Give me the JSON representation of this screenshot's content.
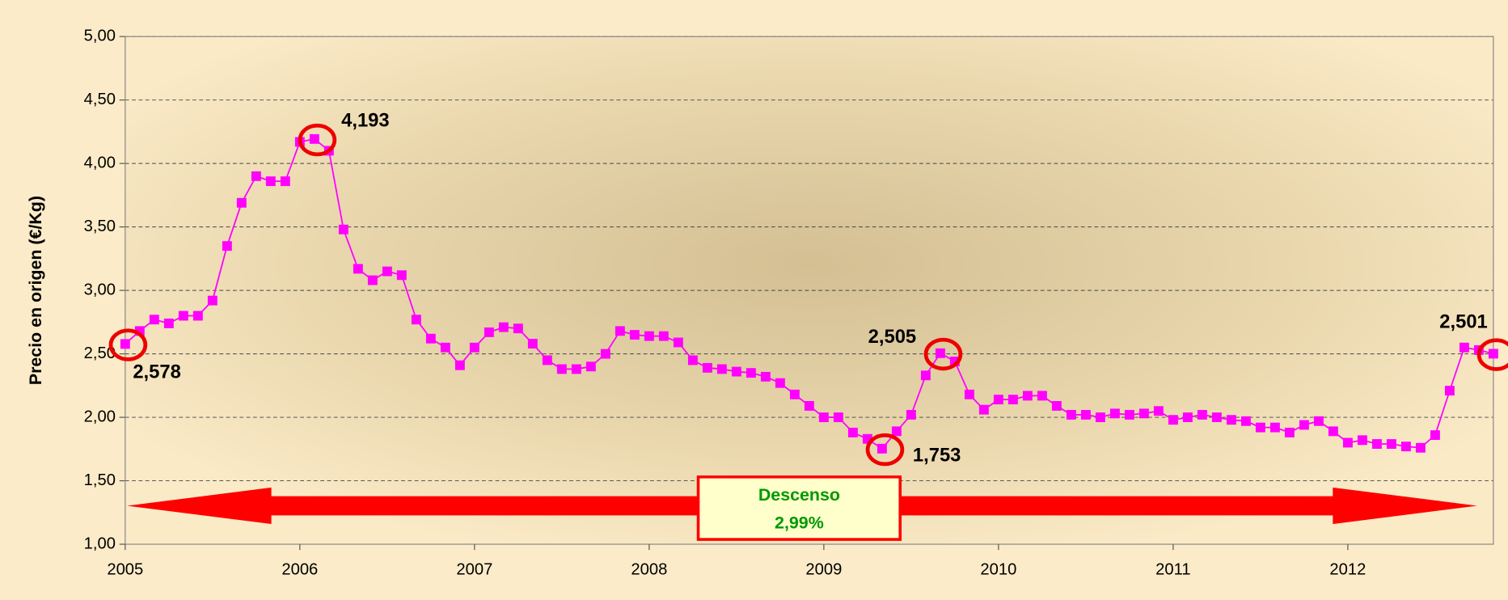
{
  "chart_data": {
    "type": "line",
    "y_label": "Precio en origen (€/Kg)",
    "categories": [
      "2005",
      null,
      null,
      null,
      null,
      null,
      null,
      null,
      null,
      null,
      null,
      null,
      "2006",
      null,
      null,
      null,
      null,
      null,
      null,
      null,
      null,
      null,
      null,
      null,
      "2007",
      null,
      null,
      null,
      null,
      null,
      null,
      null,
      null,
      null,
      null,
      null,
      "2008",
      null,
      null,
      null,
      null,
      null,
      null,
      null,
      null,
      null,
      null,
      null,
      "2009",
      null,
      null,
      null,
      null,
      null,
      null,
      null,
      null,
      null,
      null,
      null,
      "2010",
      null,
      null,
      null,
      null,
      null,
      null,
      null,
      null,
      null,
      null,
      null,
      "2011",
      null,
      null,
      null,
      null,
      null,
      null,
      null,
      null,
      null,
      null,
      null,
      "2012",
      null,
      null,
      null,
      null,
      null,
      null,
      null,
      null,
      null,
      null
    ],
    "values": [
      2.578,
      2.68,
      2.77,
      2.74,
      2.8,
      2.8,
      2.92,
      3.35,
      3.69,
      3.9,
      3.86,
      3.86,
      4.17,
      4.193,
      4.1,
      3.48,
      3.17,
      3.08,
      3.15,
      3.12,
      2.77,
      2.62,
      2.55,
      2.41,
      2.55,
      2.67,
      2.71,
      2.7,
      2.58,
      2.45,
      2.38,
      2.38,
      2.4,
      2.5,
      2.68,
      2.65,
      2.64,
      2.64,
      2.59,
      2.45,
      2.39,
      2.38,
      2.36,
      2.35,
      2.32,
      2.27,
      2.18,
      2.09,
      2.0,
      2.0,
      1.88,
      1.83,
      1.753,
      1.89,
      2.02,
      2.33,
      2.505,
      2.44,
      2.18,
      2.06,
      2.14,
      2.14,
      2.17,
      2.17,
      2.09,
      2.02,
      2.02,
      2.0,
      2.03,
      2.02,
      2.03,
      2.05,
      1.98,
      2.0,
      2.02,
      2.0,
      1.98,
      1.97,
      1.92,
      1.92,
      1.88,
      1.94,
      1.97,
      1.89,
      1.8,
      1.82,
      1.79,
      1.79,
      1.77,
      1.76,
      1.86,
      2.21,
      2.55,
      2.53,
      2.501
    ],
    "value_labels": [
      "2,578",
      null,
      null,
      null,
      null,
      null,
      null,
      null,
      null,
      null,
      null,
      null,
      null,
      "4,193",
      null,
      null,
      null,
      null,
      null,
      null,
      null,
      null,
      null,
      null,
      null,
      null,
      null,
      null,
      null,
      null,
      null,
      null,
      null,
      null,
      null,
      null,
      null,
      null,
      null,
      null,
      null,
      null,
      null,
      null,
      null,
      null,
      null,
      null,
      null,
      null,
      null,
      null,
      "1,753",
      null,
      null,
      null,
      "2,505",
      null,
      null,
      null,
      null,
      null,
      null,
      null,
      null,
      null,
      null,
      null,
      null,
      null,
      null,
      null,
      null,
      null,
      null,
      null,
      null,
      null,
      null,
      null,
      null,
      null,
      null,
      null,
      null,
      null,
      null,
      null,
      null,
      null,
      null,
      null,
      null,
      null,
      "2,501"
    ],
    "color": "#ff00ff",
    "ylim": [
      1,
      5
    ],
    "yticks": [
      {
        "value": 1,
        "label": "1,00"
      },
      {
        "value": 1.5,
        "label": "1,50"
      },
      {
        "value": 2,
        "label": "2,00"
      },
      {
        "value": 2.5,
        "label": "2,50"
      },
      {
        "value": 3,
        "label": "3,00"
      },
      {
        "value": 3.5,
        "label": "3,50"
      },
      {
        "value": 4,
        "label": "4,00"
      },
      {
        "value": 4.5,
        "label": "4,50"
      },
      {
        "value": 5,
        "label": "5,00"
      }
    ],
    "grid": true,
    "annotation": {
      "title": "Descenso",
      "value": "2,99%"
    }
  }
}
